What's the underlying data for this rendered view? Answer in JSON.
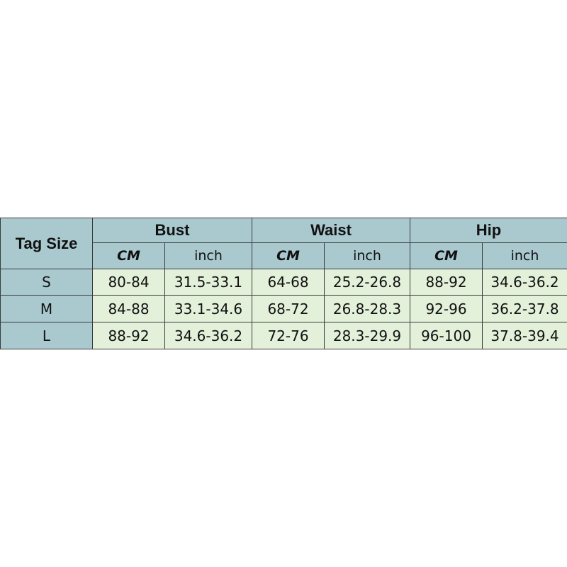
{
  "table": {
    "corner": "Tag Size",
    "groups": [
      {
        "name": "Bust",
        "units": [
          "CM",
          "inch"
        ]
      },
      {
        "name": "Waist",
        "units": [
          "CM",
          "inch"
        ]
      },
      {
        "name": "Hip",
        "units": [
          "CM",
          "inch"
        ]
      }
    ],
    "rows": [
      {
        "size": "S",
        "cells": [
          "80-84",
          "31.5-33.1",
          "64-68",
          "25.2-26.8",
          "88-92",
          "34.6-36.2"
        ]
      },
      {
        "size": "M",
        "cells": [
          "84-88",
          "33.1-34.6",
          "68-72",
          "26.8-28.3",
          "92-96",
          "36.2-37.8"
        ]
      },
      {
        "size": "L",
        "cells": [
          "88-92",
          "34.6-36.2",
          "72-76",
          "28.3-29.9",
          "96-100",
          "37.8-39.4"
        ]
      }
    ]
  }
}
